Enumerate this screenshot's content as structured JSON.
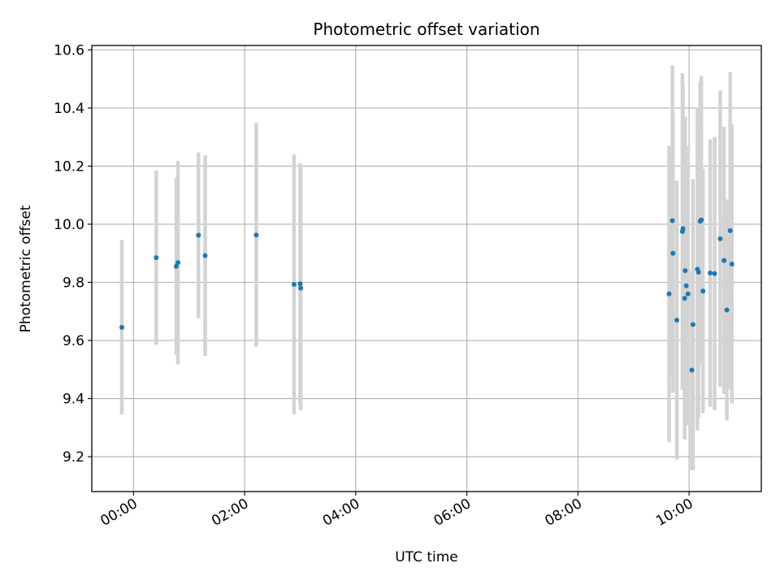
{
  "chart_data": {
    "type": "scatter",
    "title": "Photometric offset variation",
    "xlabel": "UTC time",
    "ylabel": "Photometric offset",
    "x_unit": "hours",
    "xlim": [
      -0.75,
      11.3
    ],
    "ylim": [
      9.08,
      10.615
    ],
    "xticks": [
      0,
      2,
      4,
      6,
      8,
      10
    ],
    "xtick_labels": [
      "00:00",
      "02:00",
      "04:00",
      "06:00",
      "08:00",
      "10:00"
    ],
    "yticks": [
      9.2,
      9.4,
      9.6,
      9.8,
      10.0,
      10.2,
      10.4,
      10.6
    ],
    "ytick_labels": [
      "9.2",
      "9.4",
      "9.6",
      "9.8",
      "10.0",
      "10.2",
      "10.4",
      "10.6"
    ],
    "grid": true,
    "marker_color": "#1f77b4",
    "errorbar_color": "#d3d3d3",
    "points": [
      {
        "x": -0.21,
        "y": 9.645,
        "yerr": 0.3
      },
      {
        "x": 0.41,
        "y": 9.885,
        "yerr": 0.3
      },
      {
        "x": 0.77,
        "y": 9.855,
        "yerr": 0.305
      },
      {
        "x": 0.8,
        "y": 9.868,
        "yerr": 0.35
      },
      {
        "x": 1.17,
        "y": 9.962,
        "yerr": 0.285
      },
      {
        "x": 1.29,
        "y": 9.892,
        "yerr": 0.345
      },
      {
        "x": 2.21,
        "y": 9.963,
        "yerr": 0.385
      },
      {
        "x": 2.89,
        "y": 9.793,
        "yerr": 0.447
      },
      {
        "x": 3.0,
        "y": 9.795,
        "yerr": 0.415
      },
      {
        "x": 3.01,
        "y": 9.78,
        "yerr": 0.42
      },
      {
        "x": 9.64,
        "y": 9.76,
        "yerr": 0.51
      },
      {
        "x": 9.7,
        "y": 10.012,
        "yerr": 0.535
      },
      {
        "x": 9.71,
        "y": 9.9,
        "yerr": 0.48
      },
      {
        "x": 9.78,
        "y": 9.67,
        "yerr": 0.48
      },
      {
        "x": 9.88,
        "y": 9.975,
        "yerr": 0.545
      },
      {
        "x": 9.89,
        "y": 9.985,
        "yerr": 0.49
      },
      {
        "x": 9.92,
        "y": 9.745,
        "yerr": 0.485
      },
      {
        "x": 9.93,
        "y": 9.84,
        "yerr": 0.53
      },
      {
        "x": 9.95,
        "y": 9.788,
        "yerr": 0.48
      },
      {
        "x": 9.98,
        "y": 9.76,
        "yerr": 0.45
      },
      {
        "x": 10.05,
        "y": 9.498,
        "yerr": 0.345
      },
      {
        "x": 10.07,
        "y": 9.655,
        "yerr": 0.5
      },
      {
        "x": 10.15,
        "y": 9.845,
        "yerr": 0.555
      },
      {
        "x": 10.17,
        "y": 9.835,
        "yerr": 0.5
      },
      {
        "x": 10.2,
        "y": 10.01,
        "yerr": 0.48
      },
      {
        "x": 10.22,
        "y": 10.015,
        "yerr": 0.495
      },
      {
        "x": 10.25,
        "y": 9.77,
        "yerr": 0.42
      },
      {
        "x": 10.38,
        "y": 9.832,
        "yerr": 0.46
      },
      {
        "x": 10.46,
        "y": 9.83,
        "yerr": 0.47
      },
      {
        "x": 10.56,
        "y": 9.95,
        "yerr": 0.51
      },
      {
        "x": 10.63,
        "y": 9.875,
        "yerr": 0.46
      },
      {
        "x": 10.68,
        "y": 9.705,
        "yerr": 0.38
      },
      {
        "x": 10.74,
        "y": 9.978,
        "yerr": 0.545
      },
      {
        "x": 10.77,
        "y": 9.863,
        "yerr": 0.48
      }
    ]
  }
}
